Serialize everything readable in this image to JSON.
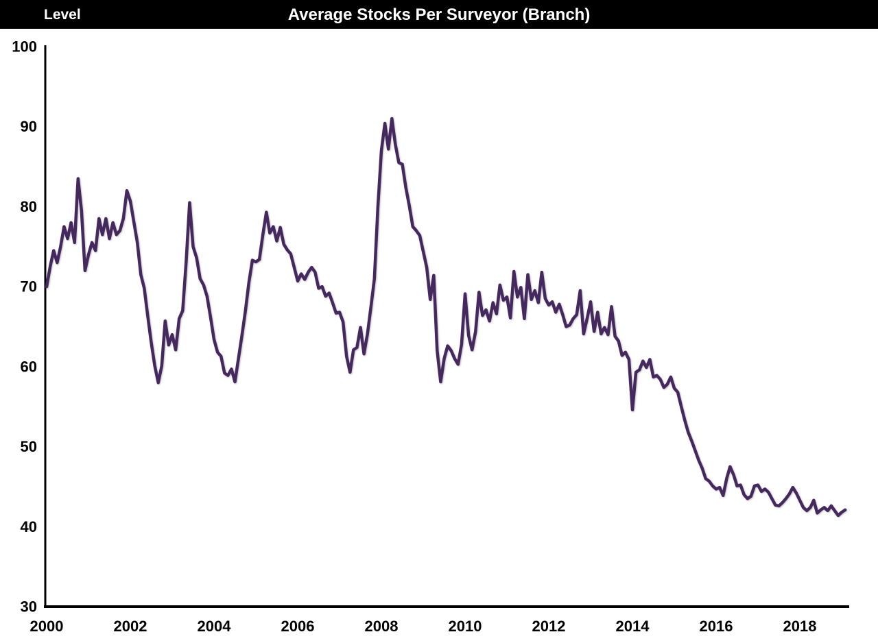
{
  "header": {
    "axis_unit_label": "Level",
    "title": "Average Stocks Per Surveyor (Branch)",
    "bg_color": "#000000",
    "text_color": "#ffffff"
  },
  "chart_data": {
    "type": "line",
    "title": "Average Stocks Per Surveyor (Branch)",
    "ylabel": "Level",
    "xlabel": "",
    "grid": false,
    "legend_position": "none",
    "line_color": "#45295E",
    "axis_color": "#000000",
    "ylim": [
      30,
      100
    ],
    "y_ticks": [
      100,
      90,
      80,
      70,
      60,
      50,
      40,
      30
    ],
    "x_ticks": [
      2000,
      2002,
      2004,
      2006,
      2008,
      2010,
      2012,
      2014,
      2016,
      2018
    ],
    "x_start_year": 2000,
    "frequency": "monthly",
    "series": [
      {
        "name": "Average stocks per surveyor (branch)",
        "values": [
          70.0,
          72.5,
          74.5,
          73.0,
          75.0,
          77.5,
          76.0,
          78.0,
          75.5,
          83.5,
          79.5,
          72.0,
          74.0,
          75.5,
          74.5,
          78.5,
          76.5,
          78.5,
          76.0,
          78.0,
          76.5,
          77.0,
          78.5,
          82.0,
          80.7,
          78.1,
          75.5,
          71.5,
          69.8,
          66.3,
          63.0,
          60.1,
          58.0,
          60.1,
          65.7,
          62.7,
          64.0,
          62.1,
          66.0,
          67.0,
          73.0,
          80.5,
          75.0,
          73.6,
          71.0,
          70.2,
          68.8,
          66.2,
          63.4,
          61.8,
          61.3,
          59.2,
          58.9,
          59.7,
          58.1,
          61.0,
          63.9,
          67.0,
          70.5,
          73.3,
          73.1,
          73.4,
          76.5,
          79.3,
          76.7,
          77.5,
          75.7,
          77.4,
          75.3,
          74.6,
          74.1,
          72.4,
          70.7,
          71.6,
          70.9,
          71.8,
          72.4,
          71.8,
          69.8,
          70.0,
          68.8,
          69.2,
          68.0,
          66.7,
          66.8,
          65.6,
          61.3,
          59.3,
          62.1,
          62.4,
          64.9,
          61.6,
          64.1,
          67.5,
          71.0,
          80.0,
          87.0,
          90.4,
          87.2,
          91.0,
          87.8,
          85.5,
          85.3,
          82.4,
          80.1,
          77.5,
          77.0,
          76.4,
          74.4,
          72.4,
          68.4,
          71.4,
          62.0,
          58.1,
          61.0,
          62.6,
          62.0,
          61.0,
          60.3,
          62.8,
          69.1,
          63.9,
          62.1,
          64.4,
          69.3,
          66.4,
          67.1,
          65.7,
          68.0,
          66.6,
          70.2,
          68.3,
          68.7,
          66.1,
          71.9,
          68.7,
          69.9,
          66.0,
          71.5,
          68.4,
          69.5,
          68.0,
          71.8,
          68.5,
          67.7,
          68.1,
          66.8,
          67.8,
          66.5,
          65.0,
          65.2,
          66.0,
          66.5,
          69.5,
          64.1,
          66.0,
          68.1,
          64.4,
          66.8,
          64.1,
          64.9,
          64.0,
          67.5,
          63.8,
          63.2,
          61.4,
          61.8,
          60.9,
          54.6,
          59.3,
          59.6,
          60.7,
          59.9,
          60.9,
          58.7,
          58.9,
          58.4,
          57.4,
          57.8,
          58.7,
          57.3,
          56.8,
          55.0,
          53.3,
          51.8,
          50.7,
          49.5,
          48.3,
          47.3,
          46.0,
          45.7,
          45.1,
          44.7,
          44.9,
          43.9,
          46.0,
          47.5,
          46.5,
          45.1,
          45.2,
          44.0,
          43.5,
          43.8,
          45.1,
          45.2,
          44.4,
          44.7,
          44.3,
          43.5,
          42.7,
          42.6,
          43.0,
          43.5,
          44.1,
          44.9,
          44.2,
          43.3,
          42.4,
          42.0,
          42.4,
          43.3,
          41.7,
          42.1,
          42.4,
          42.0,
          42.6,
          42.0,
          41.4,
          41.8,
          42.1
        ]
      }
    ]
  }
}
